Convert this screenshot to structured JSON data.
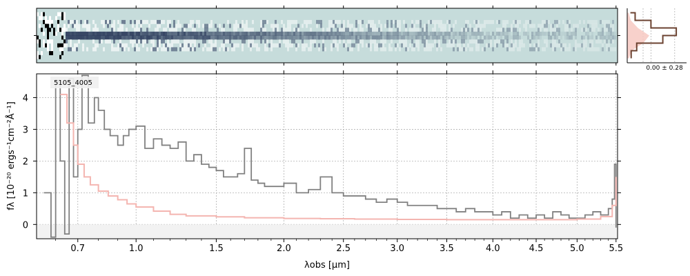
{
  "chart_data": [
    {
      "type": "heatmap",
      "panel": "2d-spectrum",
      "background_color": "#c6dcdb",
      "trace_color": "#1e2d50",
      "noise_color": "#ffffff"
    },
    {
      "type": "line",
      "panel": "profile",
      "annotation": "0.00 ± 0.28",
      "fill_color": "#f7c9c2",
      "line_color": "#6b4230",
      "profile": [
        {
          "y": -3,
          "v": 0.05
        },
        {
          "y": -2,
          "v": 0.12
        },
        {
          "y": -1,
          "v": 0.45
        },
        {
          "y": 0,
          "v": 0.62
        },
        {
          "y": 1,
          "v": 0.3
        },
        {
          "y": 2,
          "v": 0.1
        },
        {
          "y": 3,
          "v": 0.04
        }
      ]
    },
    {
      "type": "line",
      "panel": "1d-spectrum",
      "title": "5105_4005",
      "xlabel": "λobs [μm]",
      "ylabel": "fλ [10⁻²⁰ ergs⁻¹cm⁻²Å⁻¹]",
      "x_scale": "sqrt",
      "xlim": [
        0.52,
        5.52
      ],
      "ylim": [
        -0.45,
        4.75
      ],
      "xticks": [
        0.7,
        1.0,
        1.5,
        2.0,
        2.5,
        3.0,
        3.5,
        4.0,
        4.5,
        5.0,
        5.5
      ],
      "xticklabels": [
        "0.7",
        "1.0",
        "1.5",
        "2.0",
        "2.5",
        "3.0",
        "3.5",
        "4.0",
        "4.5",
        "5.0",
        "5.5"
      ],
      "yticks": [
        0,
        1,
        2,
        3,
        4
      ],
      "yticklabels": [
        "0",
        "1",
        "2",
        "3",
        "4"
      ],
      "grid": true,
      "series": [
        {
          "role": "data",
          "color": "#808080",
          "x": [
            0.55,
            0.58,
            0.6,
            0.62,
            0.64,
            0.66,
            0.68,
            0.7,
            0.72,
            0.75,
            0.78,
            0.8,
            0.83,
            0.86,
            0.9,
            0.93,
            0.96,
            1.0,
            1.05,
            1.1,
            1.15,
            1.2,
            1.25,
            1.3,
            1.35,
            1.4,
            1.45,
            1.5,
            1.55,
            1.6,
            1.65,
            1.7,
            1.75,
            1.8,
            1.85,
            1.9,
            2.0,
            2.1,
            2.2,
            2.3,
            2.4,
            2.5,
            2.6,
            2.7,
            2.8,
            2.9,
            3.0,
            3.1,
            3.2,
            3.3,
            3.4,
            3.5,
            3.6,
            3.7,
            3.8,
            3.9,
            4.0,
            4.1,
            4.2,
            4.3,
            4.4,
            4.5,
            4.6,
            4.7,
            4.8,
            4.9,
            5.0,
            5.1,
            5.2,
            5.3,
            5.4,
            5.45,
            5.48,
            5.5
          ],
          "y": [
            1.0,
            -0.4,
            4.5,
            2.0,
            -0.3,
            4.6,
            1.5,
            3.0,
            4.7,
            3.2,
            4.0,
            3.6,
            3.0,
            2.8,
            2.5,
            2.8,
            3.0,
            3.1,
            2.4,
            2.7,
            2.5,
            2.4,
            2.6,
            2.0,
            2.2,
            1.9,
            1.8,
            1.7,
            1.5,
            1.5,
            1.6,
            2.4,
            1.4,
            1.3,
            1.2,
            1.2,
            1.3,
            1.0,
            1.1,
            1.5,
            1.0,
            0.9,
            0.9,
            0.8,
            0.7,
            0.8,
            0.7,
            0.6,
            0.6,
            0.6,
            0.5,
            0.5,
            0.4,
            0.5,
            0.4,
            0.4,
            0.3,
            0.4,
            0.2,
            0.3,
            0.2,
            0.3,
            0.2,
            0.4,
            0.3,
            0.2,
            0.2,
            0.3,
            0.4,
            0.3,
            0.5,
            0.8,
            1.9,
            -0.1
          ]
        },
        {
          "role": "model",
          "color": "#f4b5b0",
          "x": [
            0.62,
            0.65,
            0.68,
            0.7,
            0.73,
            0.76,
            0.8,
            0.85,
            0.9,
            0.95,
            1.0,
            1.1,
            1.2,
            1.3,
            1.5,
            1.7,
            2.0,
            2.3,
            2.6,
            3.0,
            3.5,
            4.0,
            4.5,
            5.0,
            5.3,
            5.45,
            5.5
          ],
          "y": [
            4.1,
            3.2,
            2.5,
            1.9,
            1.5,
            1.25,
            1.05,
            0.9,
            0.78,
            0.65,
            0.55,
            0.42,
            0.32,
            0.27,
            0.24,
            0.21,
            0.19,
            0.18,
            0.17,
            0.16,
            0.15,
            0.15,
            0.15,
            0.17,
            0.25,
            0.6,
            1.5
          ]
        }
      ]
    }
  ]
}
